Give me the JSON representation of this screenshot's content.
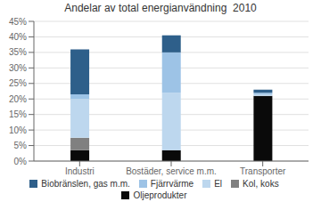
{
  "chart_data": {
    "type": "bar",
    "title": "Andelar av total energianvändning  2010",
    "stacked": true,
    "categories": [
      "Industri",
      "Bostäder, service m.m.",
      "Transporter"
    ],
    "series": [
      {
        "name": "Oljeprodukter",
        "color": "#0a0a0a",
        "values": [
          3.5,
          3.5,
          21.0
        ]
      },
      {
        "name": "Kol, koks",
        "color": "#808080",
        "values": [
          4.0,
          0.0,
          0.0
        ]
      },
      {
        "name": "El",
        "color": "#bdd7ee",
        "values": [
          12.5,
          18.5,
          0.5
        ]
      },
      {
        "name": "Fjärrvärme",
        "color": "#9dc3e6",
        "values": [
          1.5,
          13.0,
          0.5
        ]
      },
      {
        "name": "Biobränslen, gas m.m.",
        "color": "#2e5f8a",
        "values": [
          14.5,
          5.5,
          1.0
        ]
      }
    ],
    "ylim": [
      0,
      45
    ],
    "yticks": [
      {
        "value": 0,
        "label": "0%"
      },
      {
        "value": 5,
        "label": "5%"
      },
      {
        "value": 10,
        "label": "10%"
      },
      {
        "value": 15,
        "label": "15%"
      },
      {
        "value": 20,
        "label": "20%"
      },
      {
        "value": 25,
        "label": "25%"
      },
      {
        "value": 30,
        "label": "30%"
      },
      {
        "value": 35,
        "label": "35%"
      },
      {
        "value": 40,
        "label": "40%"
      },
      {
        "value": 45,
        "label": "45%"
      }
    ],
    "grid": true,
    "legend": "bottom"
  }
}
